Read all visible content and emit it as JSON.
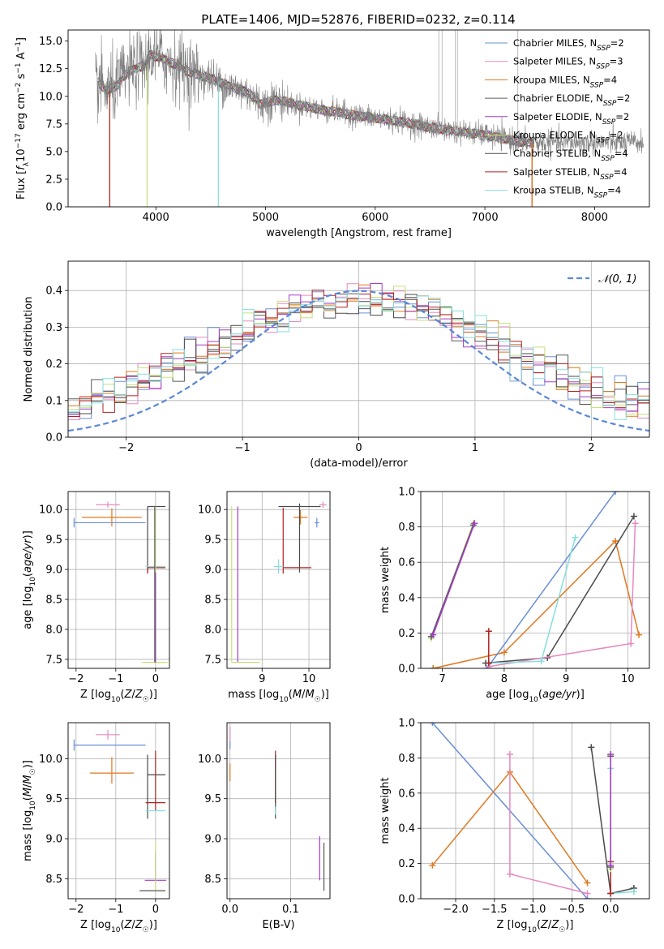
{
  "figure": {
    "title": "PLATE=1406, MJD=52876, FIBERID=0232, z=0.114"
  },
  "colors": {
    "Chabrier MILES": "#6a8fd6",
    "Salpeter MILES": "#e58ac0",
    "Kroupa MILES": "#e0781f",
    "Chabrier ELODIE": "#5a5a5a",
    "Salpeter ELODIE": "#a53dc8",
    "Kroupa ELODIE": "#c6e07a",
    "Chabrier STELIB": "#4a4a4a",
    "Salpeter STELIB": "#b22222",
    "Kroupa STELIB": "#86dede",
    "data": "#7f7f7f",
    "gaussian": "#5b88d6",
    "grid": "#b0b0b0"
  },
  "chart_data": [
    {
      "id": "spectrum",
      "type": "line",
      "xlabel": "wavelength [Angstrom, rest frame]",
      "ylabel": "Flux [f_λ 10^-17 erg cm^-2 s^-1 A^-1]",
      "xlim": [
        3200,
        8500
      ],
      "ylim": [
        0,
        16
      ],
      "xticks": [
        4000,
        5000,
        6000,
        7000,
        8000
      ],
      "yticks": [
        0.0,
        2.5,
        5.0,
        7.5,
        10.0,
        12.5,
        15.0
      ],
      "grid": false,
      "legend_position": "upper right",
      "legend": [
        {
          "name": "Chabrier MILES",
          "label": "Chabrier MILES, N",
          "sub": "SSP",
          "suffix": "=2"
        },
        {
          "name": "Salpeter MILES",
          "label": "Salpeter MILES, N",
          "sub": "SSP",
          "suffix": "=3"
        },
        {
          "name": "Kroupa MILES",
          "label": "Kroupa MILES, N",
          "sub": "SSP",
          "suffix": "=4"
        },
        {
          "name": "Chabrier ELODIE",
          "label": "Chabrier ELODIE, N",
          "sub": "SSP",
          "suffix": "=2"
        },
        {
          "name": "Salpeter ELODIE",
          "label": "Salpeter ELODIE, N",
          "sub": "SSP",
          "suffix": "=2"
        },
        {
          "name": "Kroupa ELODIE",
          "label": "Kroupa ELODIE, N",
          "sub": "SSP",
          "suffix": "=2"
        },
        {
          "name": "Chabrier STELIB",
          "label": "Chabrier STELIB, N",
          "sub": "SSP",
          "suffix": "=4"
        },
        {
          "name": "Salpeter STELIB",
          "label": "Salpeter STELIB, N",
          "sub": "SSP",
          "suffix": "=4"
        },
        {
          "name": "Kroupa STELIB",
          "label": "Kroupa STELIB, N",
          "sub": "SSP",
          "suffix": "=4"
        }
      ],
      "continuum": {
        "x": [
          3470,
          3550,
          3650,
          3700,
          3800,
          3900,
          3950,
          4000,
          4100,
          4200,
          4300,
          4500,
          4700,
          4850,
          4950,
          5100,
          5300,
          5500,
          5800,
          6100,
          6300,
          6500,
          6700,
          7000,
          7200,
          7400
        ],
        "y": [
          11.3,
          10.5,
          11.0,
          11.8,
          12.5,
          12.8,
          13.8,
          13.6,
          13.2,
          12.8,
          12.2,
          11.6,
          10.8,
          10.3,
          9.3,
          9.7,
          9.2,
          8.8,
          8.3,
          7.9,
          7.6,
          7.2,
          6.9,
          6.5,
          6.1,
          5.8
        ]
      },
      "data_range": [
        3450,
        8450
      ],
      "model_dips": [
        {
          "x": 3580,
          "series": [
            "Kroupa MILES",
            "Salpeter STELIB"
          ]
        },
        {
          "x": 3920,
          "series": [
            "Kroupa ELODIE"
          ]
        },
        {
          "x": 4570,
          "series": [
            "Kroupa STELIB"
          ]
        },
        {
          "x": 7430,
          "series": [
            "Salpeter STELIB",
            "Kroupa MILES"
          ]
        }
      ],
      "spikes": [
        6580,
        6610,
        6730,
        6750,
        7300
      ]
    },
    {
      "id": "residuals",
      "type": "step",
      "xlabel": "(data-model)/error",
      "ylabel": "Normed distribution",
      "xlim": [
        -2.5,
        2.5
      ],
      "ylim": [
        0,
        0.48
      ],
      "xticks": [
        -2,
        -1,
        0,
        1,
        2
      ],
      "yticks": [
        0.0,
        0.1,
        0.2,
        0.3,
        0.4
      ],
      "grid": true,
      "legend_position": "upper right",
      "reference": {
        "name": "N(0,1)",
        "label": "𝒩(0, 1)",
        "mean": 0,
        "sigma": 1
      },
      "bin_width": 0.1
    },
    {
      "id": "age-vs-Z",
      "type": "errorbar",
      "xlabel": "Z [log10(Z/Z☉)]",
      "ylabel": "age [log10(age/yr)]",
      "xlim": [
        -2.2,
        0.35
      ],
      "ylim": [
        7.35,
        10.3
      ],
      "xticks": [
        -2,
        -1,
        0
      ],
      "yticks": [
        7.5,
        8.0,
        8.5,
        9.0,
        9.5,
        10.0
      ],
      "grid": true,
      "points": [
        {
          "series": "Chabrier MILES",
          "x": -2.05,
          "y": 9.78,
          "xerr": [
            0,
            1.8
          ],
          "yerr": [
            0.08,
            0.08
          ]
        },
        {
          "series": "Salpeter MILES",
          "x": -1.2,
          "y": 10.08,
          "xerr": [
            0.3,
            0.3
          ],
          "yerr": [
            0.05,
            0.05
          ]
        },
        {
          "series": "Kroupa MILES",
          "x": -1.1,
          "y": 9.87,
          "xerr": [
            0.75,
            0.75
          ],
          "yerr": [
            0.15,
            0.15
          ]
        },
        {
          "series": "Chabrier STELIB",
          "x": -0.2,
          "y": 10.05,
          "xerr": [
            0,
            0.45
          ],
          "yerr": [
            1.1,
            0
          ]
        },
        {
          "series": "Salpeter STELIB",
          "x": -0.2,
          "y": 9.03,
          "xerr": [
            0,
            0.45
          ],
          "yerr": [
            0.1,
            0
          ]
        },
        {
          "series": "Kroupa STELIB",
          "x": 0.0,
          "y": 9.05,
          "xerr": [
            0.25,
            0.25
          ],
          "yerr": [
            0,
            0
          ]
        },
        {
          "series": "Kroupa ELODIE",
          "x": 0.0,
          "y": 7.45,
          "xerr": [
            0.35,
            0.3
          ],
          "yerr": [
            0,
            2.6
          ]
        },
        {
          "series": "Salpeter ELODIE",
          "x": 0.0,
          "y": 7.45,
          "xerr": [
            0,
            0
          ],
          "yerr": [
            0,
            1.5
          ]
        },
        {
          "series": "Chabrier ELODIE",
          "x": -0.02,
          "y": 7.45,
          "xerr": [
            0,
            0
          ],
          "yerr": [
            0,
            2.6
          ]
        }
      ]
    },
    {
      "id": "age-vs-mass",
      "type": "errorbar",
      "xlabel": "mass [log10(M/M☉)]",
      "ylabel": "",
      "xlim": [
        8.25,
        10.45
      ],
      "ylim": [
        7.35,
        10.3
      ],
      "xticks": [
        9,
        10
      ],
      "yticks": [
        7.5,
        8.0,
        8.5,
        9.0,
        9.5,
        10.0
      ],
      "grid": true,
      "points": [
        {
          "series": "Chabrier MILES",
          "x": 10.17,
          "y": 9.78,
          "xerr": [
            0.05,
            0.05
          ],
          "yerr": [
            0.08,
            0.08
          ]
        },
        {
          "series": "Salpeter MILES",
          "x": 10.3,
          "y": 10.08,
          "xerr": [
            0.08,
            0.08
          ],
          "yerr": [
            0.05,
            0.05
          ]
        },
        {
          "series": "Kroupa MILES",
          "x": 9.82,
          "y": 9.87,
          "xerr": [
            0.15,
            0.15
          ],
          "yerr": [
            0.12,
            0.12
          ]
        },
        {
          "series": "Chabrier STELIB",
          "x": 9.8,
          "y": 10.05,
          "xerr": [
            0.45,
            0.45
          ],
          "yerr": [
            1.1,
            0.05
          ]
        },
        {
          "series": "Salpeter STELIB",
          "x": 9.45,
          "y": 9.03,
          "xerr": [
            0,
            0.6
          ],
          "yerr": [
            0.1,
            1.0
          ]
        },
        {
          "series": "Kroupa STELIB",
          "x": 9.35,
          "y": 9.05,
          "xerr": [
            0.1,
            0.1
          ],
          "yerr": [
            0.12,
            0.12
          ]
        },
        {
          "series": "Salpeter ELODIE",
          "x": 8.48,
          "y": 7.45,
          "xerr": [
            0,
            0
          ],
          "yerr": [
            0,
            2.6
          ]
        },
        {
          "series": "Kroupa ELODIE",
          "x": 8.35,
          "y": 7.45,
          "xerr": [
            0,
            0.6
          ],
          "yerr": [
            0,
            2.6
          ]
        }
      ]
    },
    {
      "id": "weight-vs-age",
      "type": "line",
      "xlabel": "age [log10(age/yr)]",
      "ylabel": "mass weight",
      "xlim": [
        6.65,
        10.35
      ],
      "ylim": [
        0,
        1
      ],
      "xticks": [
        7,
        8,
        9,
        10
      ],
      "yticks": [
        0.0,
        0.2,
        0.4,
        0.6,
        0.8,
        1.0
      ],
      "grid": true,
      "series": [
        {
          "name": "Kroupa ELODIE",
          "x": [
            6.82,
            7.5
          ],
          "y": [
            0.17,
            0.82
          ]
        },
        {
          "name": "Chabrier ELODIE",
          "x": [
            6.82,
            7.5
          ],
          "y": [
            0.18,
            0.81
          ]
        },
        {
          "name": "Salpeter ELODIE",
          "x": [
            6.85,
            7.52
          ],
          "y": [
            0.19,
            0.82
          ]
        },
        {
          "name": "Kroupa MILES",
          "x": [
            6.85,
            8.0,
            9.8,
            10.18
          ],
          "y": [
            0.0,
            0.09,
            0.72,
            0.19
          ]
        },
        {
          "name": "Chabrier MILES",
          "x": [
            7.72,
            9.8
          ],
          "y": [
            0.0,
            1.0
          ]
        },
        {
          "name": "Chabrier STELIB",
          "x": [
            7.7,
            8.7,
            10.1
          ],
          "y": [
            0.03,
            0.06,
            0.86
          ]
        },
        {
          "name": "Salpeter MILES",
          "x": [
            7.75,
            10.05,
            10.12
          ],
          "y": [
            0.01,
            0.14,
            0.82
          ]
        },
        {
          "name": "Kroupa STELIB",
          "x": [
            7.75,
            8.6,
            9.15
          ],
          "y": [
            0.03,
            0.04,
            0.74
          ]
        },
        {
          "name": "Salpeter STELIB",
          "x": [
            7.75,
            7.75
          ],
          "y": [
            0.03,
            0.21
          ]
        }
      ]
    },
    {
      "id": "mass-vs-Z",
      "type": "errorbar",
      "xlabel": "Z [log10(Z/Z☉)]",
      "ylabel": "mass [log10(M/M☉)]",
      "xlim": [
        -2.2,
        0.35
      ],
      "ylim": [
        8.25,
        10.45
      ],
      "xticks": [
        -2,
        -1,
        0
      ],
      "yticks": [
        8.5,
        9.0,
        9.5,
        10.0
      ],
      "grid": true,
      "points": [
        {
          "series": "Chabrier MILES",
          "x": -2.05,
          "y": 10.17,
          "xerr": [
            0,
            1.8
          ],
          "yerr": [
            0.07,
            0.07
          ]
        },
        {
          "series": "Salpeter MILES",
          "x": -1.2,
          "y": 10.3,
          "xerr": [
            0.3,
            0.3
          ],
          "yerr": [
            0.06,
            0.06
          ]
        },
        {
          "series": "Kroupa MILES",
          "x": -1.1,
          "y": 9.82,
          "xerr": [
            0.55,
            0.55
          ],
          "yerr": [
            0.13,
            0.2
          ]
        },
        {
          "series": "Chabrier STELIB",
          "x": -0.2,
          "y": 9.8,
          "xerr": [
            0,
            0.45
          ],
          "yerr": [
            0.55,
            0.25
          ]
        },
        {
          "series": "Salpeter STELIB",
          "x": 0.0,
          "y": 9.45,
          "xerr": [
            0.25,
            0.25
          ],
          "yerr": [
            0.1,
            0.65
          ]
        },
        {
          "series": "Kroupa STELIB",
          "x": 0.0,
          "y": 9.35,
          "xerr": [
            0.25,
            0.25
          ],
          "yerr": [
            0,
            0
          ]
        },
        {
          "series": "Salpeter ELODIE",
          "x": 0.0,
          "y": 8.48,
          "xerr": [
            0.27,
            0.27
          ],
          "yerr": [
            0.02,
            0.35
          ]
        },
        {
          "series": "Kroupa ELODIE",
          "x": 0.0,
          "y": 8.35,
          "xerr": [
            0.4,
            0.25
          ],
          "yerr": [
            0,
            0.6
          ]
        },
        {
          "series": "Chabrier ELODIE",
          "x": 0.0,
          "y": 8.35,
          "xerr": [
            0.4,
            0.25
          ],
          "yerr": [
            0,
            0
          ]
        }
      ]
    },
    {
      "id": "mass-vs-ebv",
      "type": "errorbar",
      "xlabel": "E(B-V)",
      "ylabel": "",
      "xlim": [
        -0.005,
        0.165
      ],
      "ylim": [
        8.25,
        10.45
      ],
      "xticks": [
        0.0,
        0.1
      ],
      "yticks": [
        8.5,
        9.0,
        9.5,
        10.0
      ],
      "grid": true,
      "points": [
        {
          "series": "Salpeter MILES",
          "x": 0.0,
          "y": 10.3,
          "xerr": [
            0,
            0
          ],
          "yerr": [
            0.1,
            0.1
          ]
        },
        {
          "series": "Chabrier MILES",
          "x": 0.0,
          "y": 10.17,
          "xerr": [
            0,
            0
          ],
          "yerr": [
            0.05,
            0.05
          ]
        },
        {
          "series": "Kroupa MILES",
          "x": 0.0,
          "y": 9.82,
          "xerr": [
            0,
            0
          ],
          "yerr": [
            0.1,
            0.12
          ]
        },
        {
          "series": "Salpeter STELIB",
          "x": 0.075,
          "y": 9.45,
          "xerr": [
            0,
            0
          ],
          "yerr": [
            0,
            0.65
          ]
        },
        {
          "series": "Chabrier STELIB",
          "x": 0.075,
          "y": 9.8,
          "xerr": [
            0,
            0
          ],
          "yerr": [
            0.55,
            0.25
          ]
        },
        {
          "series": "Kroupa STELIB",
          "x": 0.075,
          "y": 9.35,
          "xerr": [
            0,
            0
          ],
          "yerr": [
            0.05,
            0.05
          ]
        },
        {
          "series": "Salpeter ELODIE",
          "x": 0.148,
          "y": 8.48,
          "xerr": [
            0,
            0
          ],
          "yerr": [
            0,
            0.55
          ]
        },
        {
          "series": "Kroupa ELODIE",
          "x": 0.155,
          "y": 8.35,
          "xerr": [
            0,
            0
          ],
          "yerr": [
            0,
            0.6
          ]
        },
        {
          "series": "Chabrier ELODIE",
          "x": 0.155,
          "y": 8.35,
          "xerr": [
            0,
            0
          ],
          "yerr": [
            0,
            0.6
          ]
        }
      ]
    },
    {
      "id": "weight-vs-Z",
      "type": "line",
      "xlabel": "Z [log10(Z/Z☉)]",
      "ylabel": "mass weight",
      "xlim": [
        -2.45,
        0.5
      ],
      "ylim": [
        0,
        1
      ],
      "xticks": [
        -2.0,
        -1.5,
        -1.0,
        -0.5,
        0.0
      ],
      "yticks": [
        0.0,
        0.2,
        0.4,
        0.6,
        0.8,
        1.0
      ],
      "grid": true,
      "series": [
        {
          "name": "Chabrier MILES",
          "x": [
            -2.3,
            -0.3
          ],
          "y": [
            1.0,
            0.0
          ]
        },
        {
          "name": "Kroupa MILES",
          "x": [
            -2.3,
            -1.3,
            -0.3
          ],
          "y": [
            0.19,
            0.72,
            0.09
          ]
        },
        {
          "name": "Salpeter MILES",
          "x": [
            -1.3,
            -1.3,
            -0.3
          ],
          "y": [
            0.82,
            0.14,
            0.03
          ]
        },
        {
          "name": "Chabrier STELIB",
          "x": [
            -0.25,
            0.0,
            0.3
          ],
          "y": [
            0.86,
            0.03,
            0.06
          ]
        },
        {
          "name": "Kroupa STELIB",
          "x": [
            0.0,
            0.0,
            0.3
          ],
          "y": [
            0.74,
            0.03,
            0.04
          ]
        },
        {
          "name": "Salpeter STELIB",
          "x": [
            0.0,
            0.0
          ],
          "y": [
            0.21,
            0.03
          ]
        },
        {
          "name": "Kroupa ELODIE",
          "x": [
            0.0,
            0.0
          ],
          "y": [
            0.82,
            0.17
          ]
        },
        {
          "name": "Chabrier ELODIE",
          "x": [
            0.0,
            0.0
          ],
          "y": [
            0.81,
            0.18
          ]
        },
        {
          "name": "Salpeter ELODIE",
          "x": [
            0.0,
            0.0
          ],
          "y": [
            0.82,
            0.19
          ]
        }
      ]
    }
  ]
}
